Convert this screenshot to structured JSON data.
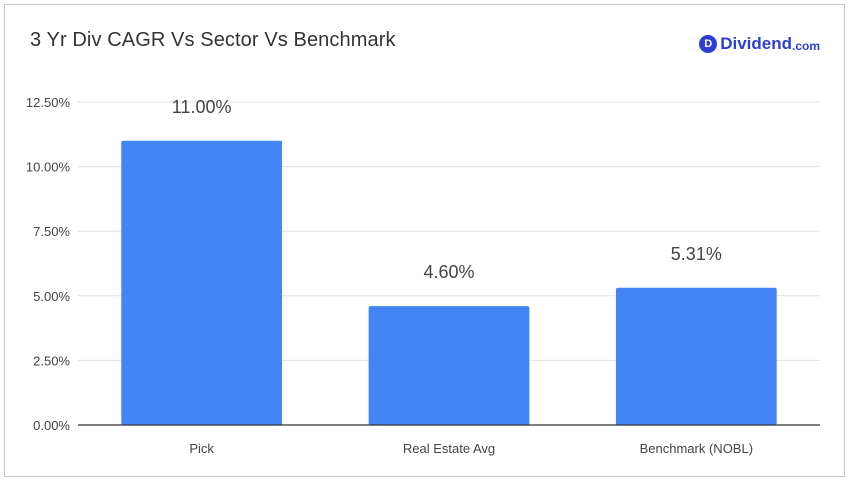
{
  "header": {
    "title": "3 Yr Div CAGR Vs Sector Vs Benchmark",
    "brand_letter": "D",
    "brand_name": "Dividend",
    "brand_tld": ".com"
  },
  "colors": {
    "bar": "#4285f4",
    "grid": "#e0e0e0",
    "axis": "#333333",
    "brand": "#2d3fd3"
  },
  "chart_data": {
    "type": "bar",
    "title": "3 Yr Div CAGR Vs Sector Vs Benchmark",
    "categories": [
      "Pick",
      "Real Estate Avg",
      "Benchmark (NOBL)"
    ],
    "values": [
      11.0,
      4.6,
      5.31
    ],
    "data_labels": [
      "11.00%",
      "4.60%",
      "5.31%"
    ],
    "yticks": [
      0,
      2.5,
      5,
      7.5,
      10,
      12.5
    ],
    "ytick_labels": [
      "0.00%",
      "2.50%",
      "5.00%",
      "7.50%",
      "10.00%",
      "12.50%"
    ],
    "ylim": [
      0,
      12.5
    ],
    "xlabel": "",
    "ylabel": "",
    "grid": true,
    "legend": "none"
  }
}
